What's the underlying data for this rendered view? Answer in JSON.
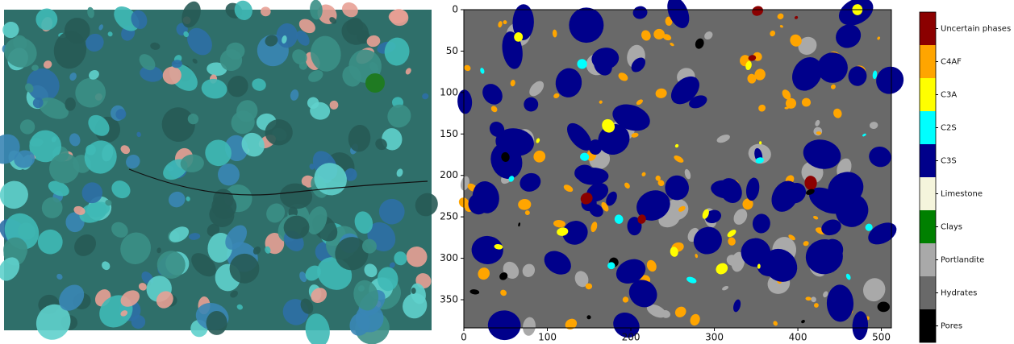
{
  "chart_data": {
    "type": "phase-map",
    "xlim": [
      0,
      512
    ],
    "xticks": [
      0,
      100,
      200,
      300,
      400,
      500
    ],
    "ylim": [
      384,
      0
    ],
    "yticks": [
      0,
      50,
      100,
      150,
      200,
      250,
      300,
      350
    ],
    "legend": "right",
    "classes": [
      {
        "name": "Uncertain phases",
        "color": "#8b0000"
      },
      {
        "name": "C4AF",
        "color": "#ffa500"
      },
      {
        "name": "C3A",
        "color": "#ffff00"
      },
      {
        "name": "C2S",
        "color": "#00ffff"
      },
      {
        "name": "C3S",
        "color": "#00008b"
      },
      {
        "name": "Limestone",
        "color": "#f5f5dc"
      },
      {
        "name": "Clays",
        "color": "#008000"
      },
      {
        "name": "Portlandite",
        "color": "#a9a9a9"
      },
      {
        "name": "Hydrates",
        "color": "#696969"
      },
      {
        "name": "Pores",
        "color": "#000000"
      }
    ]
  }
}
